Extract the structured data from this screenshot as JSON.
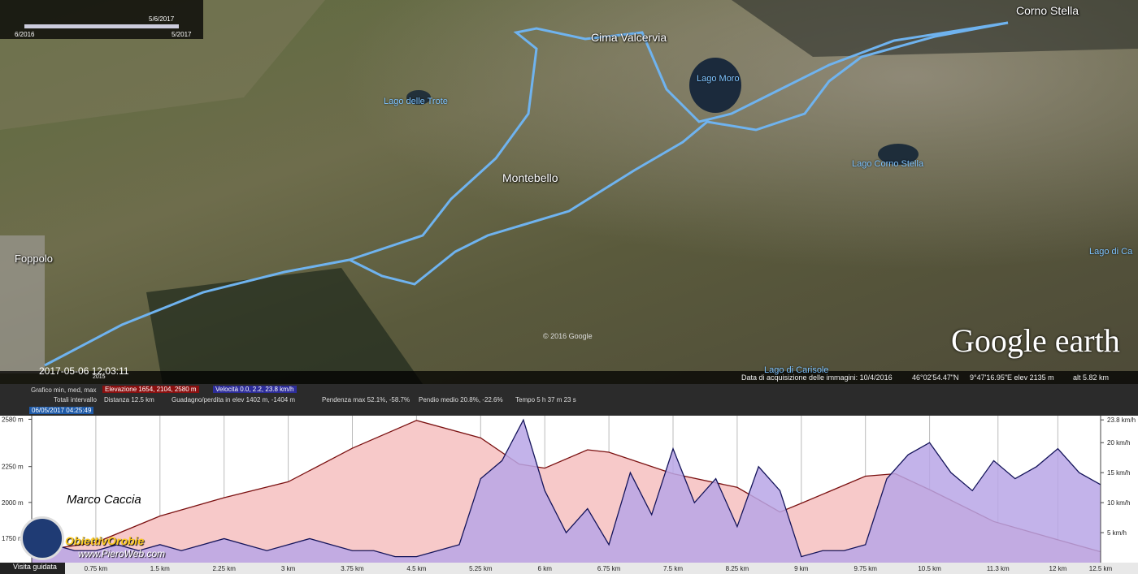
{
  "map": {
    "placemarks": [
      "Corno Stella",
      "Cima Valcervia",
      "Montebello"
    ],
    "places": [
      "Foppolo"
    ],
    "lakes": [
      "Lago Moro",
      "Lago delle Trote",
      "Lago Corno Stella",
      "Lago di Ca",
      "Lago di Carisole"
    ],
    "copyright": "© 2016 Google",
    "logo": "Google earth",
    "cursor_time": "2017-05-06 12:03:11",
    "imagery_year": "2015"
  },
  "time_slider": {
    "current": "5/6/2017",
    "start": "6/2016",
    "end": "5/2017"
  },
  "status": {
    "imagery_date": "Data di acquisizione delle immagini: 10/4/2016",
    "latitude": "46°02'54.47\"N",
    "longitude": "9°47'16.95\"E  elev  2135 m",
    "elevation": "",
    "altitude": "alt  5.82 km"
  },
  "profile_panel": {
    "graph_label": "Grafico  min, med, max",
    "elevation": "Elevazione  1654, 2104, 2580 m",
    "speed": "Velocità  0.0, 2.2, 23.8 km/h",
    "totals_label": "Totali intervallo",
    "distance": "Distanza  12.5 km",
    "gain_loss": "Guadagno/perdita in elev  1402 m, -1404 m",
    "max_slope": "Pendenza max  52.1%, -58.7%",
    "avg_slope": "Pendio medio  20.8%, -22.6%",
    "time": "Tempo  5 h 37 m 23 s",
    "cursor_date": "06/05/2017 04:25:49",
    "tour_button": "Visita guidata"
  },
  "watermark": {
    "author": "Marco Caccia",
    "site": "ObiettivOrobie",
    "url": "www.PieroWeb.com"
  },
  "chart_data": {
    "type": "line",
    "xlim": [
      0,
      12.5
    ],
    "ylim": [
      1580,
      2605
    ],
    "y2lim": [
      0,
      24.5
    ],
    "xticks": [
      {
        "value": 0.75,
        "label": "0.75 km"
      },
      {
        "value": 1.5,
        "label": "1.5 km"
      },
      {
        "value": 2.25,
        "label": "2.25 km"
      },
      {
        "value": 3,
        "label": "3 km"
      },
      {
        "value": 3.75,
        "label": "3.75 km"
      },
      {
        "value": 4.5,
        "label": "4.5 km"
      },
      {
        "value": 5.25,
        "label": "5.25 km"
      },
      {
        "value": 6,
        "label": "6 km"
      },
      {
        "value": 6.75,
        "label": "6.75 km"
      },
      {
        "value": 7.5,
        "label": "7.5 km"
      },
      {
        "value": 8.25,
        "label": "8.25 km"
      },
      {
        "value": 9,
        "label": "9 km"
      },
      {
        "value": 9.75,
        "label": "9.75 km"
      },
      {
        "value": 10.5,
        "label": "10.5 km"
      },
      {
        "value": 11.3,
        "label": "11.3 km"
      },
      {
        "value": 12,
        "label": "12 km"
      },
      {
        "value": 12.5,
        "label": "12.5 km"
      }
    ],
    "yticks": [
      {
        "value": 1750,
        "label": "1750 m"
      },
      {
        "value": 2000,
        "label": "2000 m"
      },
      {
        "value": 2250,
        "label": "2250 m"
      },
      {
        "value": 2580,
        "label": "2580 m"
      }
    ],
    "y2ticks": [
      {
        "value": 5,
        "label": "5 km/h"
      },
      {
        "value": 10,
        "label": "10 km/h"
      },
      {
        "value": 15,
        "label": "15 km/h"
      },
      {
        "value": 20,
        "label": "20 km/h"
      },
      {
        "value": 23.8,
        "label": "23.8 km/h"
      }
    ],
    "grid": true,
    "series": [
      {
        "name": "Elevazione",
        "color": "#7a1010",
        "fill": "#f7c9c9",
        "x": [
          0,
          0.75,
          1.5,
          2.25,
          3,
          3.75,
          4.5,
          5.25,
          5.7,
          6,
          6.5,
          6.75,
          7.5,
          8.25,
          8.75,
          9,
          9.75,
          10.1,
          10.5,
          11.25,
          12,
          12.5
        ],
        "values": [
          1656,
          1720,
          1905,
          2033,
          2144,
          2378,
          2572,
          2450,
          2267,
          2239,
          2367,
          2350,
          2200,
          2105,
          1933,
          1994,
          2183,
          2200,
          2089,
          1867,
          1739,
          1656
        ]
      },
      {
        "name": "Velocità",
        "color": "#14145a",
        "fill": "#b9a6e6",
        "axis": "y2",
        "x": [
          0,
          0.25,
          0.5,
          0.75,
          1,
          1.25,
          1.5,
          1.75,
          2,
          2.25,
          2.5,
          2.75,
          3,
          3.25,
          3.5,
          3.75,
          4,
          4.25,
          4.5,
          4.75,
          5,
          5.25,
          5.5,
          5.75,
          6,
          6.25,
          6.5,
          6.75,
          7,
          7.25,
          7.5,
          7.75,
          8,
          8.25,
          8.5,
          8.75,
          9,
          9.25,
          9.5,
          9.75,
          10,
          10.25,
          10.5,
          10.75,
          11,
          11.25,
          11.5,
          11.75,
          12,
          12.25,
          12.5
        ],
        "values": [
          1,
          3,
          2,
          2,
          3,
          2,
          3,
          2,
          3,
          4,
          3,
          2,
          3,
          4,
          3,
          2,
          2,
          1,
          1,
          2,
          3,
          14,
          17,
          23.8,
          12,
          5,
          9,
          3,
          15,
          8,
          19,
          10,
          14,
          6,
          16,
          12,
          1,
          2,
          2,
          3,
          14,
          18,
          20,
          15,
          12,
          17,
          14,
          16,
          19,
          15,
          13
        ]
      }
    ]
  }
}
